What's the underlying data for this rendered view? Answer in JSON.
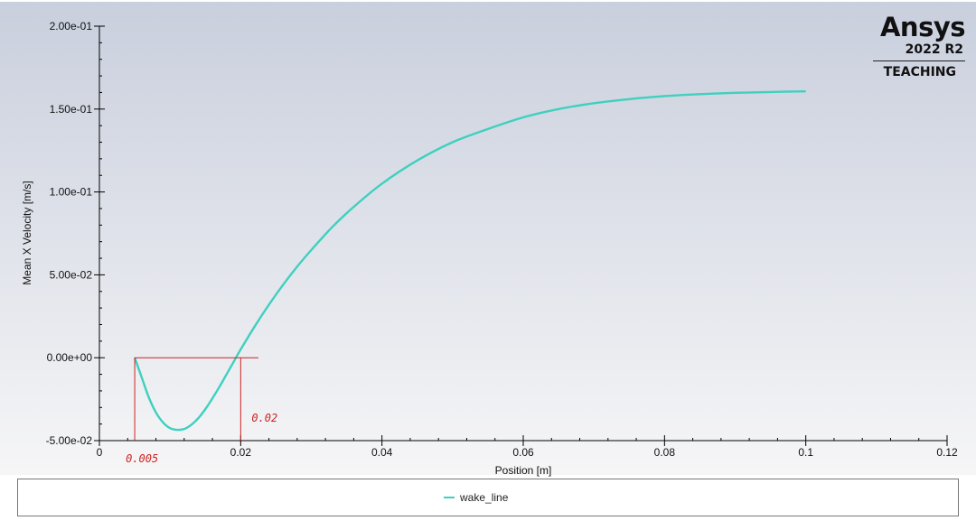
{
  "logo": {
    "brand": "Ansys",
    "version": "2022 R2",
    "edition": "TEACHING"
  },
  "colors": {
    "plot_background_top": "#c9cfdd",
    "plot_background_bottom": "#f6f6f7",
    "series": "#3fd0bf",
    "annotation": "#cc2222",
    "axis": "#000000"
  },
  "chart_data": {
    "type": "line",
    "xlabel": "Position [m]",
    "ylabel": "Mean X Velocity [m/s]",
    "xlim": [
      0,
      0.12
    ],
    "ylim": [
      -0.05,
      0.2
    ],
    "x_ticks": [
      0,
      0.02,
      0.04,
      0.06,
      0.08,
      0.1,
      0.12
    ],
    "x_tick_labels": [
      "0",
      "0.02",
      "0.04",
      "0.06",
      "0.08",
      "0.1",
      "0.12"
    ],
    "y_ticks": [
      -0.05,
      0,
      0.05,
      0.1,
      0.15,
      0.2
    ],
    "y_tick_labels": [
      "-5.00e-02",
      "0.00e+00",
      "5.00e-02",
      "1.00e-01",
      "1.50e-01",
      "2.00e-01"
    ],
    "grid": false,
    "legend": "bottom",
    "series": [
      {
        "name": "wake_line",
        "color": "#3fd0bf",
        "x": [
          0.005,
          0.006,
          0.007,
          0.008,
          0.009,
          0.01,
          0.011,
          0.012,
          0.013,
          0.014,
          0.015,
          0.016,
          0.017,
          0.018,
          0.019,
          0.02,
          0.022,
          0.024,
          0.026,
          0.028,
          0.03,
          0.033,
          0.036,
          0.04,
          0.045,
          0.05,
          0.055,
          0.06,
          0.065,
          0.07,
          0.075,
          0.08,
          0.085,
          0.09,
          0.095,
          0.1
        ],
        "y": [
          0.0,
          -0.012,
          -0.024,
          -0.033,
          -0.039,
          -0.0425,
          -0.0435,
          -0.043,
          -0.0405,
          -0.0365,
          -0.031,
          -0.0245,
          -0.0175,
          -0.01,
          -0.0025,
          0.005,
          0.019,
          0.032,
          0.044,
          0.055,
          0.065,
          0.079,
          0.091,
          0.105,
          0.119,
          0.13,
          0.138,
          0.145,
          0.15,
          0.1535,
          0.156,
          0.1578,
          0.159,
          0.1598,
          0.1603,
          0.1607
        ]
      }
    ],
    "annotations": {
      "color": "#cc2222",
      "labels": [
        {
          "text": "0.005",
          "x": 0.005
        },
        {
          "text": "0.02",
          "x": 0.02
        }
      ],
      "bracket": {
        "x_start": 0.005,
        "x_end": 0.02,
        "x_line_end": 0.0225,
        "y_top": 0.0,
        "y_bottom": -0.05
      }
    }
  }
}
